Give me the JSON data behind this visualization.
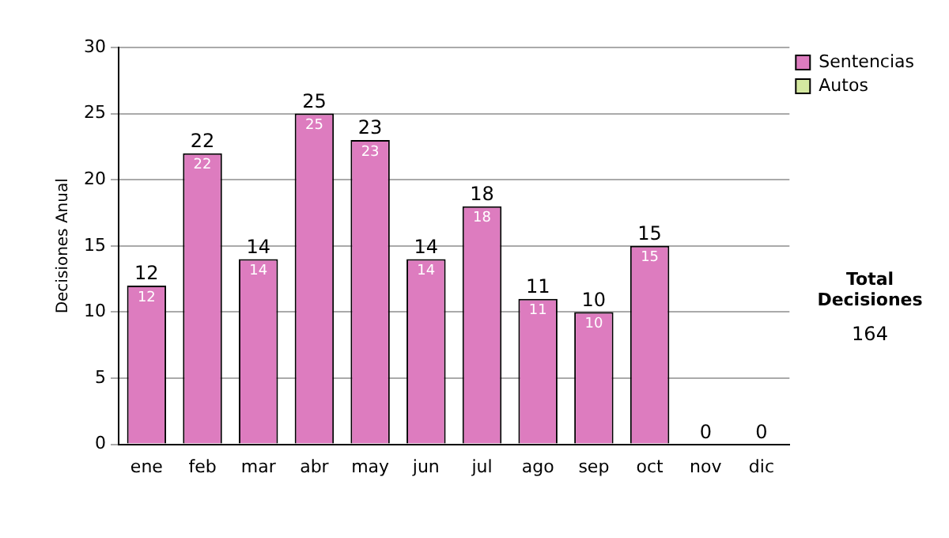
{
  "chart_data": {
    "type": "bar",
    "ylabel": "Decisiones Anual",
    "categories": [
      "ene",
      "feb",
      "mar",
      "abr",
      "may",
      "jun",
      "jul",
      "ago",
      "sep",
      "oct",
      "nov",
      "dic"
    ],
    "series": [
      {
        "name": "Sentencias",
        "color": "#dd7cbf",
        "values": [
          12,
          22,
          14,
          25,
          23,
          14,
          18,
          11,
          10,
          15,
          0,
          0
        ],
        "value_labels": [
          "12",
          "22",
          "14",
          "25",
          "23",
          "14",
          "18",
          "11",
          "10",
          "15",
          null,
          null
        ]
      },
      {
        "name": "Autos",
        "color": "#d4e8a0",
        "values": [
          0,
          0,
          0,
          0,
          0,
          0,
          0,
          0,
          0,
          0,
          0,
          0
        ]
      }
    ],
    "stacked": true,
    "totals": [
      "12",
      "22",
      "14",
      "25",
      "23",
      "14",
      "18",
      "11",
      "10",
      "15",
      "0",
      "0"
    ],
    "ylim": [
      0,
      30
    ],
    "yticks": [
      0,
      5,
      10,
      15,
      20,
      25,
      30
    ],
    "grid": "y",
    "legend": "right",
    "annotations": [
      "Total Decisiones",
      "164"
    ]
  }
}
